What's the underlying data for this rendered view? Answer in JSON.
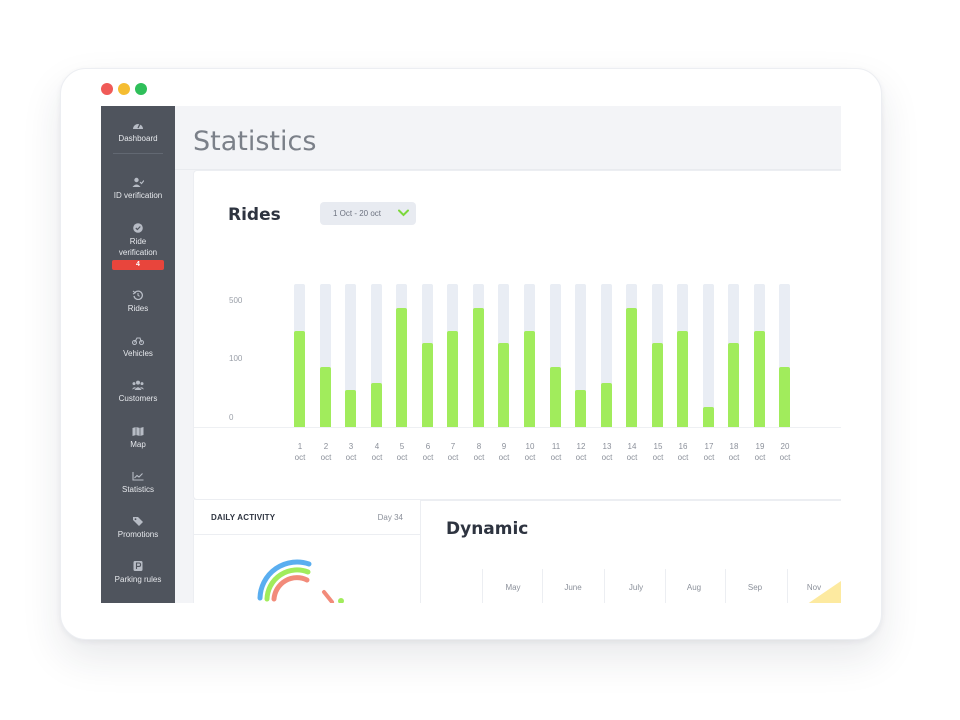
{
  "window": {
    "controls": [
      {
        "name": "close",
        "color": "#f05a57"
      },
      {
        "name": "minimize",
        "color": "#f5bd32"
      },
      {
        "name": "maximize",
        "color": "#2fbf5a"
      }
    ]
  },
  "sidebar": {
    "items": [
      {
        "id": "dashboard",
        "label": "Dashboard",
        "icon": "gauge-icon"
      },
      {
        "id": "id-verification",
        "label": "ID verification",
        "icon": "user-check-icon"
      },
      {
        "id": "ride-verification",
        "label": "Ride verification",
        "icon": "check-circle-icon",
        "badge": "4"
      },
      {
        "id": "rides",
        "label": "Rides",
        "icon": "history-icon"
      },
      {
        "id": "vehicles",
        "label": "Vehicles",
        "icon": "scooter-icon"
      },
      {
        "id": "customers",
        "label": "Customers",
        "icon": "users-icon"
      },
      {
        "id": "map",
        "label": "Map",
        "icon": "map-icon"
      },
      {
        "id": "statistics",
        "label": "Statistics",
        "icon": "line-chart-icon"
      },
      {
        "id": "promotions",
        "label": "Promotions",
        "icon": "tag-icon"
      },
      {
        "id": "parking-rules",
        "label": "Parking rules",
        "icon": "parking-icon"
      }
    ]
  },
  "page": {
    "title": "Statistics"
  },
  "rides_card": {
    "title": "Rides",
    "date_range": "1 Oct - 20 oct"
  },
  "chart_data": {
    "type": "bar",
    "title": "Rides",
    "y_ticks": [
      "500",
      "100",
      "0"
    ],
    "categories": [
      "1",
      "2",
      "3",
      "4",
      "5",
      "6",
      "7",
      "8",
      "9",
      "10",
      "11",
      "12",
      "13",
      "14",
      "15",
      "16",
      "17",
      "18",
      "19",
      "20"
    ],
    "category_unit": "oct",
    "values_fraction": [
      0.67,
      0.42,
      0.26,
      0.31,
      0.83,
      0.59,
      0.67,
      0.83,
      0.59,
      0.67,
      0.42,
      0.26,
      0.31,
      0.83,
      0.59,
      0.67,
      0.14,
      0.59,
      0.67,
      0.42
    ],
    "colors": {
      "fill": "#a1ec5c",
      "track": "#e9edf4"
    }
  },
  "daily_activity": {
    "title": "DAILY ACTIVITY",
    "day": "Day 34",
    "ring_colors": [
      "#5aaef0",
      "#a1ec5c",
      "#f28b7a"
    ]
  },
  "dynamic": {
    "title": "Dynamic",
    "months": [
      "May",
      "June",
      "July",
      "Aug",
      "Sep",
      "Nov"
    ]
  }
}
